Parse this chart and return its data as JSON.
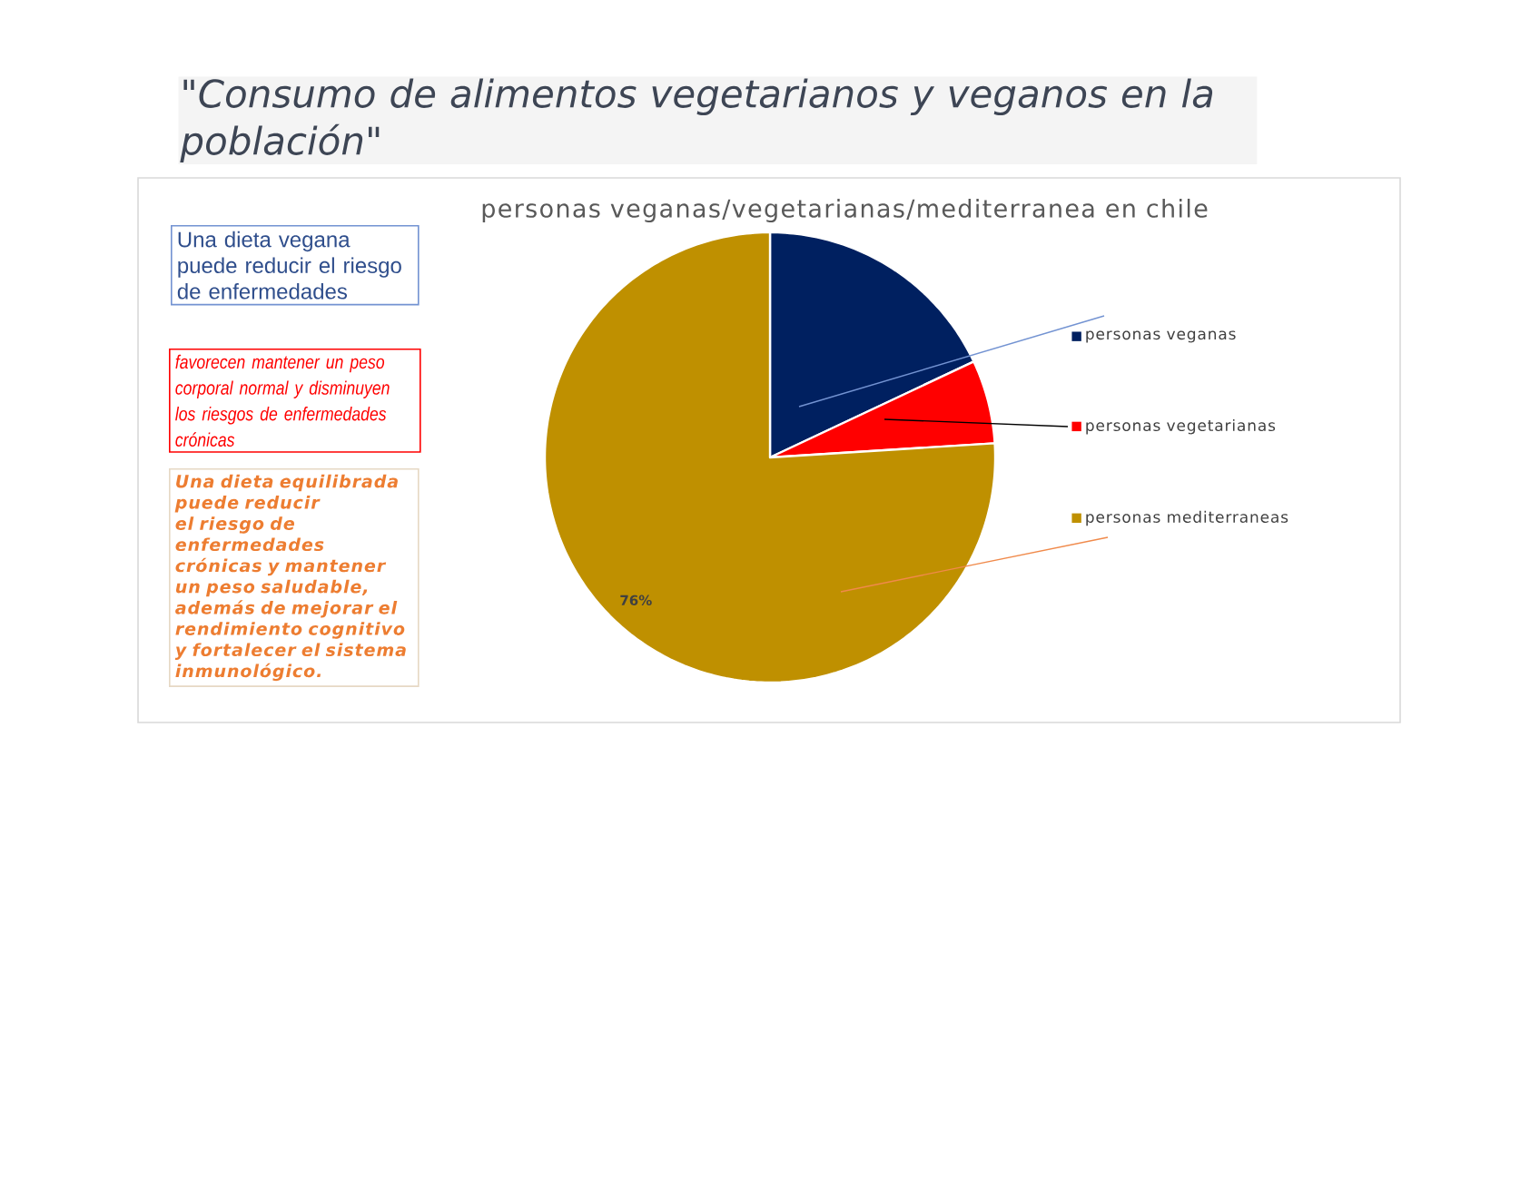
{
  "chart_data": {
    "type": "pie",
    "title": "\"Consumo de alimentos vegetarianos y veganos en la población\"",
    "subtitle": "personas veganas/vegetarianas/mediterranea en chile",
    "categories": [
      "personas veganas",
      "personas vegetarianas",
      "personas mediterraneas"
    ],
    "values": [
      18,
      6,
      76
    ],
    "colors": [
      "#002060",
      "#ff0000",
      "#bf9000"
    ],
    "value_labels": [
      null,
      null,
      "76%"
    ],
    "legend": "right",
    "annotations": [
      "Una dieta vegana puede reducir el riesgo de enfermedades",
      "favorecen mantener un peso corporal normal y disminuyen los riesgos de enfermedades crónicas",
      "Una dieta equilibrada puede reducir el riesgo de enfermedades crónicas y mantener un peso saludable, además de mejorar el rendimiento cognitivo y fortalecer el sistema inmunológico."
    ]
  }
}
